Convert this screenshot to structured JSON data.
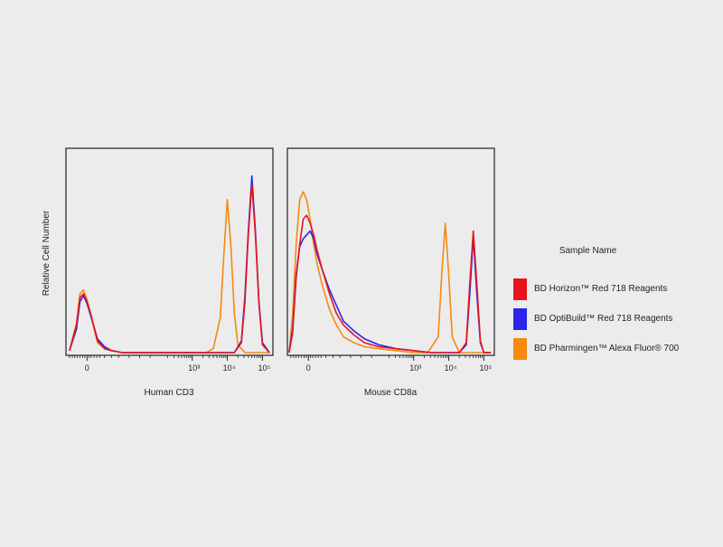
{
  "colors": {
    "red": "#e8141c",
    "blue": "#2a25e8",
    "orange": "#f7890f"
  },
  "ylabel": "Relative Cell Number",
  "legend": {
    "title": "Sample Name",
    "items": [
      {
        "label": "BD Horizon™ Red 718 Reagents",
        "color": "#e8141c"
      },
      {
        "label": "BD OptiBuild™ Red 718 Reagents",
        "color": "#2a25e8"
      },
      {
        "label": "BD Pharmingen™ Alexa Fluor® 700",
        "color": "#f7890f"
      }
    ]
  },
  "chart_data": [
    {
      "type": "line",
      "title": "",
      "xlabel": "Human CD3",
      "ylabel": "Relative Cell Number",
      "x_scale": "biexponential (log10 intensity)",
      "xlim": [
        -0.6,
        5.3
      ],
      "ylim": [
        0,
        1.0
      ],
      "tick_labels": [
        "0",
        "10³",
        "10⁴",
        "10⁵"
      ],
      "tick_values": [
        0,
        3,
        4,
        5
      ],
      "series": [
        {
          "name": "BD Horizon™ Red 718 Reagents",
          "color": "#e8141c",
          "x": [
            -0.5,
            -0.3,
            -0.2,
            -0.1,
            0,
            0.1,
            0.2,
            0.3,
            0.5,
            0.7,
            1.0,
            2.5,
            3.5,
            4.2,
            4.4,
            4.5,
            4.6,
            4.7,
            4.8,
            4.9,
            5.0,
            5.2
          ],
          "y": [
            0.01,
            0.14,
            0.28,
            0.3,
            0.26,
            0.2,
            0.13,
            0.06,
            0.02,
            0.01,
            0.0,
            0.0,
            0.0,
            0.0,
            0.05,
            0.25,
            0.6,
            0.86,
            0.6,
            0.25,
            0.04,
            0.0
          ]
        },
        {
          "name": "BD OptiBuild™ Red 718 Reagents",
          "color": "#2a25e8",
          "x": [
            -0.5,
            -0.3,
            -0.2,
            -0.1,
            0,
            0.1,
            0.2,
            0.3,
            0.5,
            0.7,
            1.0,
            2.5,
            3.5,
            4.2,
            4.4,
            4.5,
            4.6,
            4.7,
            4.8,
            4.9,
            5.0,
            5.2
          ],
          "y": [
            0.01,
            0.12,
            0.26,
            0.29,
            0.25,
            0.19,
            0.13,
            0.07,
            0.03,
            0.01,
            0.0,
            0.0,
            0.0,
            0.0,
            0.06,
            0.28,
            0.62,
            0.9,
            0.62,
            0.26,
            0.05,
            0.0
          ]
        },
        {
          "name": "BD Pharmingen™ Alexa Fluor® 700",
          "color": "#f7890f",
          "x": [
            -0.5,
            -0.3,
            -0.2,
            -0.1,
            0,
            0.1,
            0.2,
            0.3,
            0.5,
            0.7,
            1.0,
            2.5,
            3.4,
            3.6,
            3.8,
            3.9,
            4.0,
            4.1,
            4.2,
            4.3,
            4.5,
            5.2
          ],
          "y": [
            0.01,
            0.15,
            0.3,
            0.32,
            0.27,
            0.2,
            0.12,
            0.05,
            0.02,
            0.01,
            0.0,
            0.0,
            0.0,
            0.02,
            0.18,
            0.5,
            0.78,
            0.55,
            0.2,
            0.04,
            0.0,
            0.0
          ]
        }
      ]
    },
    {
      "type": "line",
      "title": "",
      "xlabel": "Mouse CD8a",
      "ylabel": "Relative Cell Number",
      "x_scale": "biexponential (log10 intensity)",
      "xlim": [
        -0.6,
        5.3
      ],
      "ylim": [
        0,
        1.0
      ],
      "tick_labels": [
        "0",
        "10³",
        "10⁴",
        "10⁵"
      ],
      "tick_values": [
        0,
        3,
        4,
        5
      ],
      "series": [
        {
          "name": "BD Horizon™ Red 718 Reagents",
          "color": "#e8141c",
          "x": [
            -0.55,
            -0.45,
            -0.35,
            -0.25,
            -0.15,
            -0.05,
            0.05,
            0.15,
            0.25,
            0.4,
            0.6,
            0.8,
            1.0,
            1.3,
            1.6,
            2.0,
            2.5,
            3.0,
            3.5,
            4.3,
            4.5,
            4.6,
            4.7,
            4.8,
            4.9,
            5.0,
            5.2
          ],
          "y": [
            0.0,
            0.1,
            0.38,
            0.55,
            0.68,
            0.7,
            0.66,
            0.6,
            0.52,
            0.42,
            0.3,
            0.2,
            0.14,
            0.09,
            0.05,
            0.03,
            0.02,
            0.01,
            0.0,
            0.0,
            0.05,
            0.35,
            0.62,
            0.35,
            0.06,
            0.0,
            0.0
          ]
        },
        {
          "name": "BD OptiBuild™ Red 718 Reagents",
          "color": "#2a25e8",
          "x": [
            -0.55,
            -0.45,
            -0.35,
            -0.25,
            -0.15,
            -0.05,
            0.05,
            0.15,
            0.25,
            0.4,
            0.6,
            0.8,
            1.0,
            1.3,
            1.6,
            2.0,
            2.5,
            3.0,
            3.5,
            4.3,
            4.5,
            4.6,
            4.7,
            4.8,
            4.9,
            5.0,
            5.2
          ],
          "y": [
            0.0,
            0.12,
            0.4,
            0.54,
            0.58,
            0.6,
            0.62,
            0.58,
            0.5,
            0.42,
            0.32,
            0.24,
            0.16,
            0.11,
            0.07,
            0.04,
            0.02,
            0.01,
            0.0,
            0.0,
            0.04,
            0.3,
            0.59,
            0.3,
            0.05,
            0.0,
            0.0
          ]
        },
        {
          "name": "BD Pharmingen™ Alexa Fluor® 700",
          "color": "#f7890f",
          "x": [
            -0.55,
            -0.45,
            -0.35,
            -0.25,
            -0.15,
            -0.05,
            0.05,
            0.15,
            0.25,
            0.4,
            0.6,
            0.8,
            1.0,
            1.3,
            1.6,
            2.0,
            2.5,
            3.0,
            3.4,
            3.7,
            3.8,
            3.9,
            4.0,
            4.1,
            4.3,
            5.2
          ],
          "y": [
            0.0,
            0.2,
            0.55,
            0.78,
            0.82,
            0.78,
            0.68,
            0.55,
            0.45,
            0.34,
            0.22,
            0.14,
            0.08,
            0.05,
            0.03,
            0.02,
            0.01,
            0.0,
            0.0,
            0.08,
            0.4,
            0.66,
            0.4,
            0.08,
            0.0,
            0.0
          ]
        }
      ]
    }
  ]
}
